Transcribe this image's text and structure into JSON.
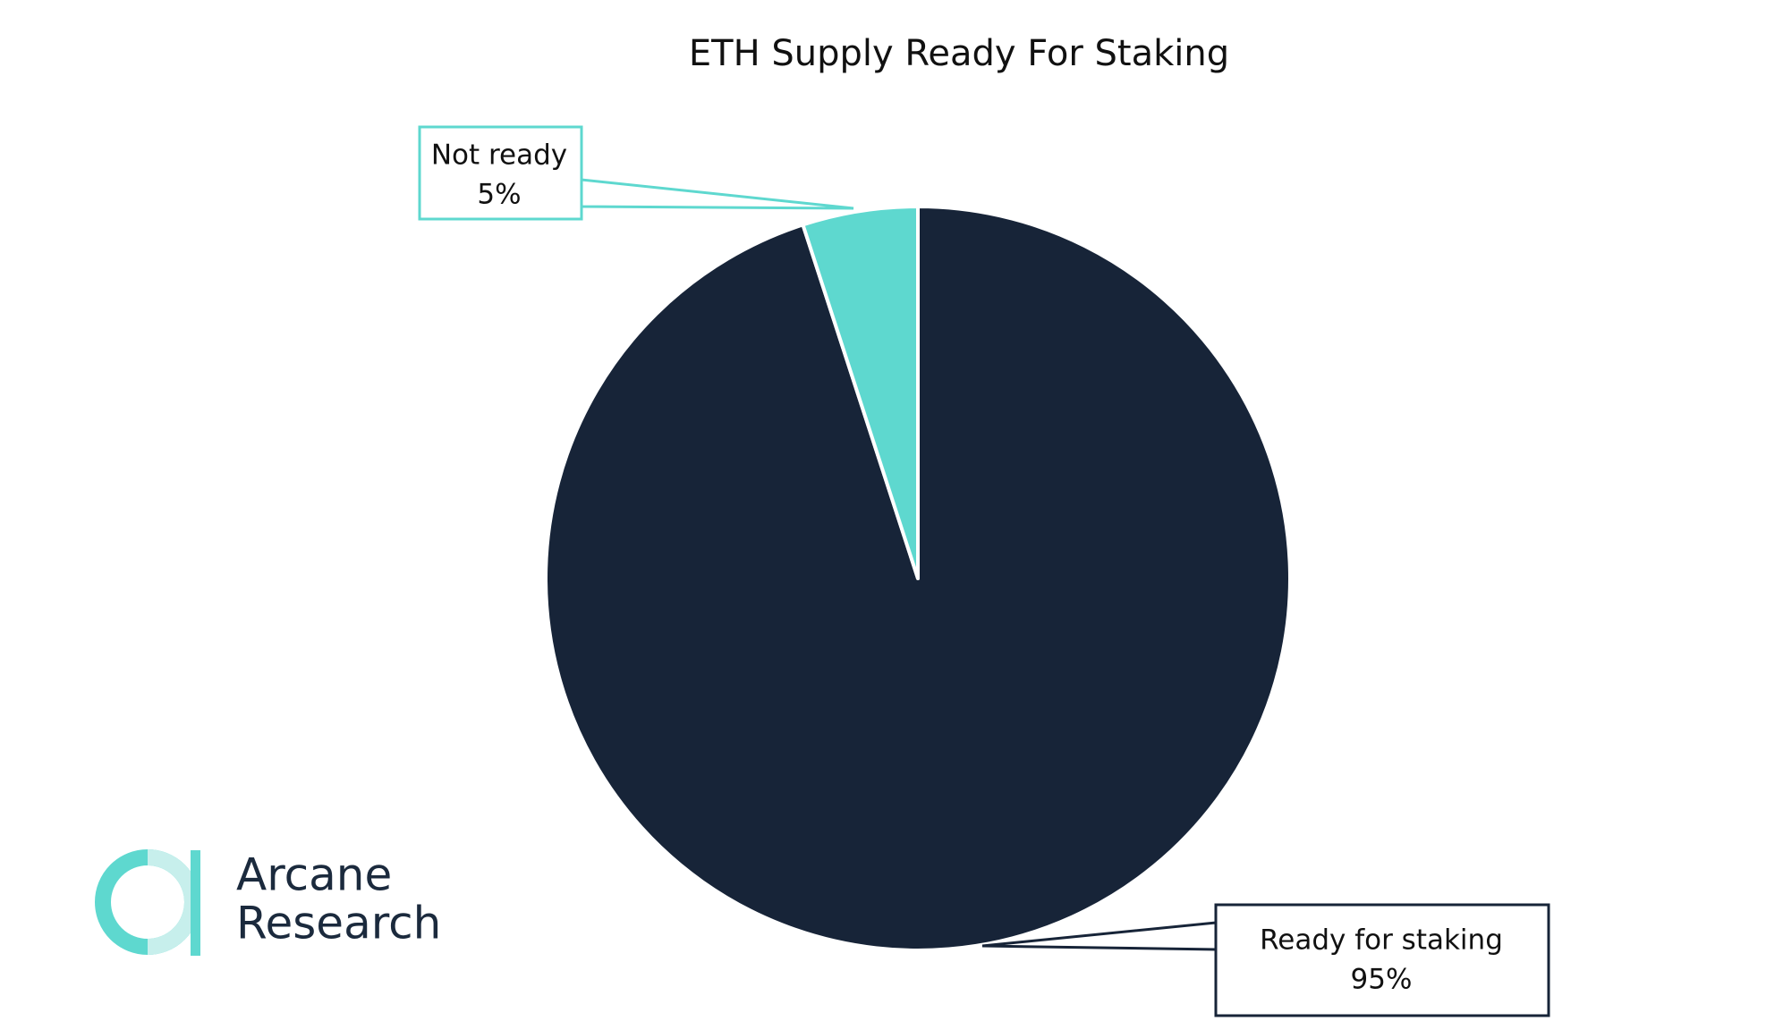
{
  "chart_data": {
    "type": "pie",
    "title": "ETH Supply Ready For Staking",
    "categories": [
      "Ready for staking",
      "Not ready"
    ],
    "values": [
      95,
      5
    ],
    "value_labels": [
      "95%",
      "5%"
    ],
    "colors": [
      "#172438",
      "#5ed8cf"
    ]
  },
  "logo": {
    "line1": "Arcane",
    "line2": "Research"
  }
}
